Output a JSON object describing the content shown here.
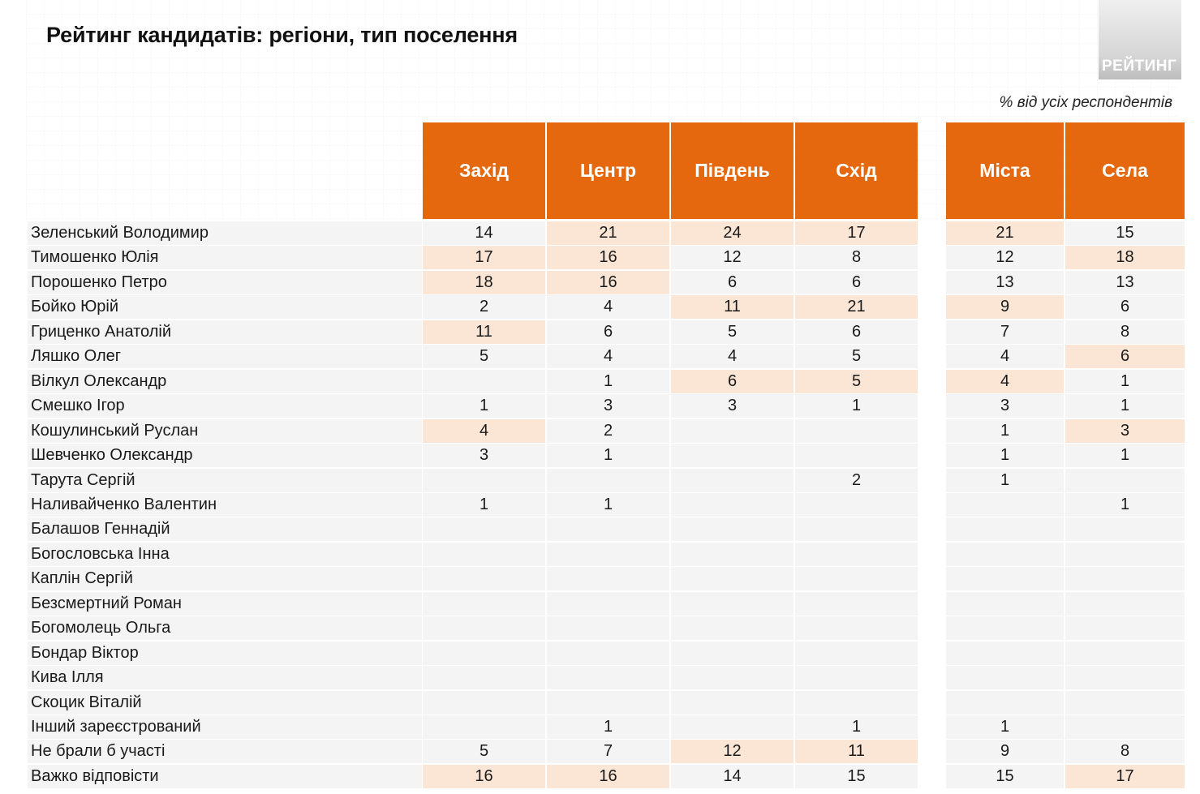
{
  "title": "Рейтинг кандидатів: регіони, тип поселення",
  "logo_text": "РЕЙТИНГ",
  "note": "% від усіх респондентів",
  "colors": {
    "header": "#e5680f",
    "highlight": "#fbe6d6",
    "cell": "#f4f4f4"
  },
  "chart_data": {
    "type": "table",
    "columns": [
      "Захід",
      "Центр",
      "Південь",
      "Схід",
      "Міста",
      "Села"
    ],
    "rows": [
      {
        "label": "Зеленський Володимир",
        "values": [
          "14",
          "21",
          "24",
          "17",
          "21",
          "15"
        ],
        "highlight": [
          false,
          true,
          true,
          true,
          true,
          false
        ]
      },
      {
        "label": "Тимошенко Юлія",
        "values": [
          "17",
          "16",
          "12",
          "8",
          "12",
          "18"
        ],
        "highlight": [
          true,
          true,
          false,
          false,
          false,
          true
        ]
      },
      {
        "label": "Порошенко Петро",
        "values": [
          "18",
          "16",
          "6",
          "6",
          "13",
          "13"
        ],
        "highlight": [
          true,
          true,
          false,
          false,
          false,
          false
        ]
      },
      {
        "label": "Бойко Юрій",
        "values": [
          "2",
          "4",
          "11",
          "21",
          "9",
          "6"
        ],
        "highlight": [
          false,
          false,
          true,
          true,
          true,
          false
        ]
      },
      {
        "label": "Гриценко Анатолій",
        "values": [
          "11",
          "6",
          "5",
          "6",
          "7",
          "8"
        ],
        "highlight": [
          true,
          false,
          false,
          false,
          false,
          false
        ]
      },
      {
        "label": "Ляшко Олег",
        "values": [
          "5",
          "4",
          "4",
          "5",
          "4",
          "6"
        ],
        "highlight": [
          false,
          false,
          false,
          false,
          false,
          true
        ]
      },
      {
        "label": "Вілкул Олександр",
        "values": [
          "",
          "1",
          "6",
          "5",
          "4",
          "1"
        ],
        "highlight": [
          false,
          false,
          true,
          true,
          true,
          false
        ]
      },
      {
        "label": "Смешко Ігор",
        "values": [
          "1",
          "3",
          "3",
          "1",
          "3",
          "1"
        ],
        "highlight": [
          false,
          false,
          false,
          false,
          false,
          false
        ]
      },
      {
        "label": "Кошулинський Руслан",
        "values": [
          "4",
          "2",
          "",
          "",
          "1",
          "3"
        ],
        "highlight": [
          true,
          false,
          false,
          false,
          false,
          true
        ]
      },
      {
        "label": "Шевченко Олександр",
        "values": [
          "3",
          "1",
          "",
          "",
          "1",
          "1"
        ],
        "highlight": [
          false,
          false,
          false,
          false,
          false,
          false
        ]
      },
      {
        "label": "Тарута Сергій",
        "values": [
          "",
          "",
          "",
          "2",
          "1",
          ""
        ],
        "highlight": [
          false,
          false,
          false,
          false,
          false,
          false
        ]
      },
      {
        "label": "Наливайченко Валентин",
        "values": [
          "1",
          "1",
          "",
          "",
          "",
          "1"
        ],
        "highlight": [
          false,
          false,
          false,
          false,
          false,
          false
        ]
      },
      {
        "label": "Балашов Геннадій",
        "values": [
          "",
          "",
          "",
          "",
          "",
          ""
        ],
        "highlight": [
          false,
          false,
          false,
          false,
          false,
          false
        ]
      },
      {
        "label": "Богословська Інна",
        "values": [
          "",
          "",
          "",
          "",
          "",
          ""
        ],
        "highlight": [
          false,
          false,
          false,
          false,
          false,
          false
        ]
      },
      {
        "label": "Каплін Сергій",
        "values": [
          "",
          "",
          "",
          "",
          "",
          ""
        ],
        "highlight": [
          false,
          false,
          false,
          false,
          false,
          false
        ]
      },
      {
        "label": "Безсмертний Роман",
        "values": [
          "",
          "",
          "",
          "",
          "",
          ""
        ],
        "highlight": [
          false,
          false,
          false,
          false,
          false,
          false
        ]
      },
      {
        "label": "Богомолець Ольга",
        "values": [
          "",
          "",
          "",
          "",
          "",
          ""
        ],
        "highlight": [
          false,
          false,
          false,
          false,
          false,
          false
        ]
      },
      {
        "label": "Бондар Віктор",
        "values": [
          "",
          "",
          "",
          "",
          "",
          ""
        ],
        "highlight": [
          false,
          false,
          false,
          false,
          false,
          false
        ]
      },
      {
        "label": "Кива Ілля",
        "values": [
          "",
          "",
          "",
          "",
          "",
          ""
        ],
        "highlight": [
          false,
          false,
          false,
          false,
          false,
          false
        ]
      },
      {
        "label": "Скоцик Віталій",
        "values": [
          "",
          "",
          "",
          "",
          "",
          ""
        ],
        "highlight": [
          false,
          false,
          false,
          false,
          false,
          false
        ]
      },
      {
        "label": "Інший зареєстрований",
        "values": [
          "",
          "1",
          "",
          "1",
          "1",
          ""
        ],
        "highlight": [
          false,
          false,
          false,
          false,
          false,
          false
        ]
      },
      {
        "label": "Не брали б участі",
        "values": [
          "5",
          "7",
          "12",
          "11",
          "9",
          "8"
        ],
        "highlight": [
          false,
          false,
          true,
          true,
          false,
          false
        ]
      },
      {
        "label": "Важко відповісти",
        "values": [
          "16",
          "16",
          "14",
          "15",
          "15",
          "17"
        ],
        "highlight": [
          true,
          true,
          false,
          false,
          false,
          true
        ]
      }
    ]
  }
}
